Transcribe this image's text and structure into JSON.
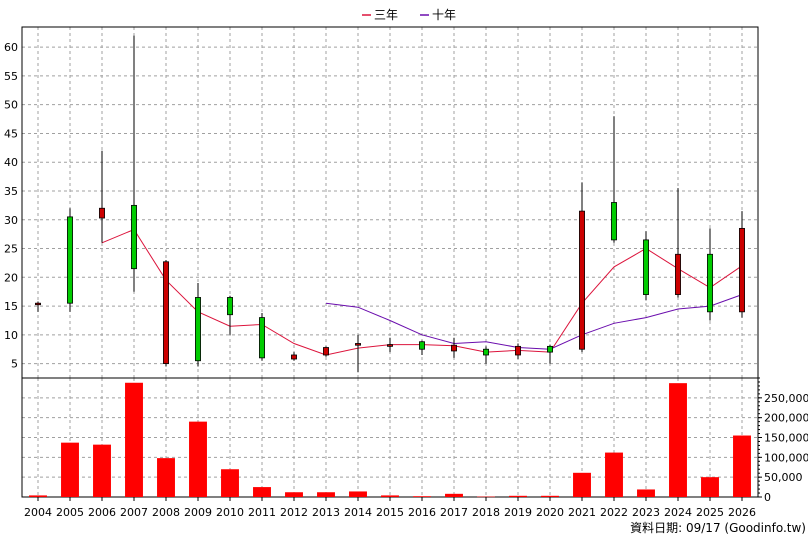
{
  "chart_data": {
    "type": "candlestick+bar",
    "legend": [
      {
        "name": "三年",
        "color": "#dc143c"
      },
      {
        "name": "十年",
        "color": "#6a0dad"
      }
    ],
    "footer": "資料日期: 09/17 (Goodinfo.tw)",
    "categories": [
      "2004",
      "2005",
      "2006",
      "2007",
      "2008",
      "2009",
      "2010",
      "2011",
      "2012",
      "2013",
      "2014",
      "2015",
      "2016",
      "2017",
      "2018",
      "2019",
      "2020",
      "2021",
      "2022",
      "2023",
      "2024",
      "2025",
      "2026"
    ],
    "price_axis": {
      "min": 2.5,
      "max": 63.5,
      "ticks": [
        5,
        10,
        15,
        20,
        25,
        30,
        35,
        40,
        45,
        50,
        55,
        60
      ]
    },
    "volume_axis": {
      "min": 0,
      "max": 300000,
      "ticks": [
        0,
        50000,
        100000,
        150000,
        200000,
        250000
      ],
      "labels": [
        "0",
        "50,000",
        "100,000",
        "150,000",
        "200,000",
        "250,000"
      ]
    },
    "candles": [
      {
        "x": "2004",
        "open": 15.5,
        "close": 15.3,
        "high": 15.8,
        "low": 14.0
      },
      {
        "x": "2005",
        "open": 15.5,
        "close": 30.5,
        "high": 32.0,
        "low": 14.0
      },
      {
        "x": "2006",
        "open": 32.0,
        "close": 30.3,
        "high": 42.0,
        "low": 26.0
      },
      {
        "x": "2007",
        "open": 21.5,
        "close": 32.5,
        "high": 62.0,
        "low": 17.5
      },
      {
        "x": "2008",
        "open": 22.7,
        "close": 5.0,
        "high": 23.0,
        "low": 4.5
      },
      {
        "x": "2009",
        "open": 5.5,
        "close": 16.5,
        "high": 19.0,
        "low": 4.5
      },
      {
        "x": "2010",
        "open": 13.5,
        "close": 16.5,
        "high": 16.8,
        "low": 10.0
      },
      {
        "x": "2011",
        "open": 6.0,
        "close": 13.0,
        "high": 13.8,
        "low": 5.5
      },
      {
        "x": "2012",
        "open": 6.5,
        "close": 5.8,
        "high": 7.0,
        "low": 5.5
      },
      {
        "x": "2013",
        "open": 7.8,
        "close": 6.5,
        "high": 8.0,
        "low": 6.2
      },
      {
        "x": "2014",
        "open": 8.5,
        "close": 8.2,
        "high": 10.0,
        "low": 3.5
      },
      {
        "x": "2015",
        "open": 8.3,
        "close": 8.0,
        "high": 9.5,
        "low": 7.0
      },
      {
        "x": "2016",
        "open": 7.5,
        "close": 8.8,
        "high": 9.0,
        "low": 6.5
      },
      {
        "x": "2017",
        "open": 8.2,
        "close": 7.2,
        "high": 9.5,
        "low": 6.0
      },
      {
        "x": "2018",
        "open": 6.5,
        "close": 7.5,
        "high": 8.0,
        "low": 5.0
      },
      {
        "x": "2019",
        "open": 8.0,
        "close": 6.5,
        "high": 8.5,
        "low": 5.8
      },
      {
        "x": "2020",
        "open": 7.0,
        "close": 8.0,
        "high": 8.3,
        "low": 5.0
      },
      {
        "x": "2021",
        "open": 31.5,
        "close": 7.5,
        "high": 36.5,
        "low": 7.0
      },
      {
        "x": "2022",
        "open": 26.5,
        "close": 33.0,
        "high": 48.0,
        "low": 26.0
      },
      {
        "x": "2023",
        "open": 17.0,
        "close": 26.5,
        "high": 28.0,
        "low": 16.0
      },
      {
        "x": "2024",
        "open": 24.0,
        "close": 17.0,
        "high": 35.5,
        "low": 16.5
      },
      {
        "x": "2025",
        "open": 14.0,
        "close": 24.0,
        "high": 28.5,
        "low": 12.5
      },
      {
        "x": "2026",
        "open": 28.5,
        "close": 14.0,
        "high": 31.5,
        "low": 13.0
      }
    ],
    "ma3": [
      null,
      null,
      26.0,
      28.3,
      19.5,
      14.0,
      11.5,
      11.8,
      8.5,
      6.5,
      7.7,
      8.3,
      8.3,
      8.1,
      7.0,
      7.3,
      7.0,
      15.5,
      21.8,
      25.0,
      21.5,
      18.2,
      22.0
    ],
    "ma10": [
      null,
      null,
      null,
      null,
      null,
      null,
      null,
      null,
      null,
      15.5,
      14.8,
      12.5,
      10.0,
      8.5,
      8.8,
      7.8,
      7.5,
      10.0,
      12.0,
      13.0,
      14.5,
      15.0,
      17.0
    ],
    "volume": [
      4000,
      137000,
      132000,
      288000,
      98000,
      190000,
      70000,
      25000,
      12000,
      12000,
      14000,
      4000,
      2000,
      8000,
      1000,
      3000,
      3000,
      61000,
      112000,
      19000,
      287000,
      50000,
      155000
    ]
  }
}
